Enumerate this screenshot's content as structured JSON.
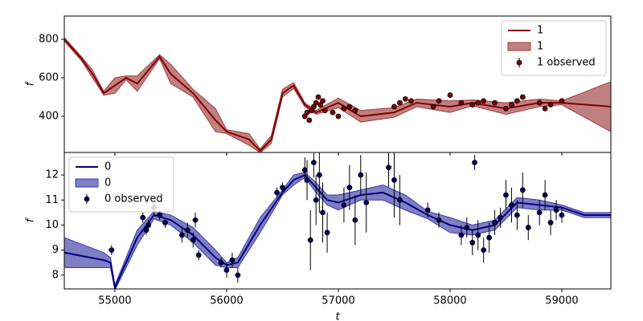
{
  "chart_data": [
    {
      "type": "line",
      "ylabel": "f",
      "legend": "upper right",
      "xlim": [
        54547,
        59439
      ],
      "ylim": [
        212,
        921
      ],
      "yticks": [
        400,
        600,
        800
      ],
      "series": [
        {
          "name": "1",
          "color": "#800000",
          "x": [
            54547,
            54700,
            54800,
            54900,
            55000,
            55100,
            55200,
            55400,
            55500,
            55700,
            55900,
            56000,
            56200,
            56300,
            56400,
            56500,
            56600,
            56700,
            56800,
            57000,
            57200,
            57500,
            57700,
            58000,
            58200,
            58500,
            58800,
            59000,
            59439
          ],
          "values": [
            800,
            700,
            620,
            520,
            560,
            600,
            570,
            710,
            620,
            520,
            380,
            320,
            280,
            220,
            280,
            520,
            560,
            460,
            420,
            470,
            400,
            420,
            470,
            450,
            470,
            440,
            470,
            470,
            450
          ]
        }
      ],
      "bands": [
        {
          "name": "1",
          "color": "#a03c3c",
          "x": [
            54547,
            54700,
            54800,
            54900,
            55000,
            55100,
            55200,
            55400,
            55500,
            55700,
            55900,
            56000,
            56200,
            56300,
            56400,
            56500,
            56600,
            56700,
            56800,
            57000,
            57200,
            57500,
            57700,
            58000,
            58200,
            58500,
            58800,
            59000,
            59439
          ],
          "lower": [
            790,
            690,
            600,
            510,
            520,
            590,
            530,
            700,
            570,
            500,
            320,
            310,
            250,
            210,
            260,
            500,
            545,
            450,
            410,
            445,
            370,
            395,
            450,
            420,
            455,
            410,
            450,
            460,
            320
          ],
          "upper": [
            810,
            710,
            640,
            530,
            600,
            610,
            610,
            720,
            670,
            540,
            440,
            330,
            310,
            230,
            300,
            540,
            575,
            470,
            430,
            495,
            430,
            445,
            490,
            480,
            485,
            470,
            490,
            480,
            580
          ]
        }
      ],
      "observed": {
        "name": "1 observed",
        "color": "#800000",
        "x": [
          56700,
          56720,
          56740,
          56760,
          56780,
          56800,
          56820,
          56840,
          56860,
          56880,
          56950,
          57000,
          57050,
          57100,
          57150,
          57500,
          57550,
          57600,
          57650,
          57850,
          57900,
          58000,
          58100,
          58200,
          58250,
          58300,
          58400,
          58500,
          58550,
          58600,
          58650,
          58800,
          58850,
          58900,
          59000
        ],
        "values": [
          400,
          420,
          380,
          430,
          450,
          470,
          500,
          460,
          480,
          430,
          420,
          400,
          440,
          450,
          430,
          450,
          470,
          490,
          480,
          450,
          480,
          510,
          470,
          460,
          470,
          480,
          470,
          440,
          460,
          480,
          500,
          470,
          440,
          460,
          480
        ],
        "errors": [
          10,
          10,
          10,
          10,
          10,
          10,
          10,
          10,
          10,
          10,
          10,
          10,
          10,
          10,
          10,
          10,
          10,
          10,
          10,
          10,
          10,
          10,
          10,
          10,
          10,
          10,
          10,
          10,
          10,
          10,
          10,
          10,
          10,
          10,
          10
        ]
      }
    },
    {
      "type": "line",
      "ylabel": "f",
      "xlabel": "t",
      "legend": "upper left",
      "xlim": [
        54547,
        59439
      ],
      "ylim": [
        7.45,
        12.9
      ],
      "yticks": [
        8,
        9,
        10,
        11,
        12
      ],
      "xticks": [
        55000,
        56000,
        57000,
        58000,
        59000
      ],
      "series": [
        {
          "name": "0",
          "color": "#00007a",
          "x": [
            54547,
            54900,
            54960,
            55000,
            55200,
            55350,
            55500,
            55700,
            55900,
            56000,
            56100,
            56300,
            56500,
            56600,
            56700,
            56800,
            56900,
            57000,
            57200,
            57400,
            57600,
            57800,
            58000,
            58200,
            58400,
            58600,
            58800,
            59000,
            59200,
            59439
          ],
          "values": [
            8.9,
            8.6,
            8.5,
            7.5,
            9.5,
            10.4,
            10.2,
            9.6,
            8.7,
            8.4,
            8.5,
            10.0,
            11.3,
            11.8,
            12.0,
            11.5,
            11.0,
            10.9,
            11.2,
            11.3,
            10.9,
            10.4,
            10.0,
            9.8,
            10.0,
            10.9,
            10.8,
            10.7,
            10.4,
            10.4
          ]
        }
      ],
      "bands": [
        {
          "name": "0",
          "color": "#3a3aa8",
          "x": [
            54547,
            54900,
            54960,
            55000,
            55200,
            55350,
            55500,
            55700,
            55900,
            56000,
            56100,
            56300,
            56500,
            56600,
            56700,
            56800,
            56900,
            57000,
            57200,
            57400,
            57600,
            57800,
            58000,
            58200,
            58400,
            58600,
            58800,
            59000,
            59200,
            59439
          ],
          "lower": [
            8.3,
            8.3,
            8.3,
            7.4,
            9.2,
            10.25,
            10.0,
            9.3,
            8.4,
            8.3,
            8.3,
            9.7,
            11.2,
            11.6,
            11.9,
            11.3,
            10.8,
            10.6,
            11.0,
            11.0,
            10.6,
            10.25,
            9.7,
            9.6,
            9.8,
            10.7,
            10.6,
            10.6,
            10.3,
            10.3
          ],
          "upper": [
            9.5,
            8.9,
            8.7,
            7.6,
            9.8,
            10.55,
            10.4,
            9.9,
            9.0,
            8.5,
            8.7,
            10.3,
            11.4,
            12.0,
            12.1,
            11.7,
            11.2,
            11.2,
            11.4,
            11.6,
            11.2,
            10.55,
            10.3,
            10.0,
            10.2,
            11.1,
            11.0,
            10.8,
            10.5,
            10.5
          ]
        }
      ],
      "observed": {
        "name": "0 observed",
        "color": "#000060",
        "x": [
          54970,
          55250,
          55280,
          55300,
          55350,
          55400,
          55450,
          55600,
          55650,
          55700,
          55720,
          55750,
          55950,
          56000,
          56050,
          56100,
          56450,
          56500,
          56700,
          56720,
          56750,
          56780,
          56800,
          56830,
          56860,
          56900,
          57050,
          57100,
          57150,
          57200,
          57250,
          57450,
          57500,
          57550,
          57800,
          57900,
          58100,
          58150,
          58200,
          58220,
          58250,
          58300,
          58350,
          58400,
          58450,
          58500,
          58550,
          58600,
          58650,
          58700,
          58800,
          58850,
          58900,
          58950,
          59000
        ],
        "values": [
          9.0,
          10.3,
          9.8,
          10.0,
          10.7,
          10.4,
          10.1,
          9.6,
          9.8,
          9.4,
          10.2,
          8.8,
          8.5,
          8.2,
          8.6,
          8.0,
          11.3,
          11.5,
          12.2,
          11.8,
          9.4,
          12.5,
          11.0,
          12.0,
          10.5,
          9.7,
          10.8,
          11.5,
          10.2,
          12.0,
          10.9,
          12.3,
          11.8,
          11.0,
          10.6,
          10.2,
          9.6,
          9.9,
          9.3,
          12.5,
          9.6,
          9.0,
          9.5,
          10.1,
          10.3,
          11.2,
          10.8,
          10.4,
          11.4,
          9.9,
          10.5,
          11.2,
          10.1,
          10.6,
          10.4
        ],
        "errors": [
          0.2,
          0.2,
          0.2,
          0.2,
          0.3,
          0.2,
          0.2,
          0.3,
          0.3,
          0.3,
          0.3,
          0.2,
          0.2,
          0.3,
          0.3,
          0.3,
          0.2,
          0.2,
          0.5,
          0.8,
          1.2,
          0.6,
          1.0,
          1.5,
          1.2,
          0.8,
          0.7,
          0.9,
          1.0,
          0.8,
          1.2,
          0.8,
          1.5,
          1.0,
          0.3,
          0.3,
          0.4,
          0.4,
          0.5,
          0.3,
          0.6,
          0.5,
          0.6,
          0.5,
          0.4,
          0.6,
          0.7,
          0.6,
          0.7,
          0.5,
          0.5,
          0.6,
          0.5,
          0.4,
          0.3
        ]
      }
    }
  ]
}
